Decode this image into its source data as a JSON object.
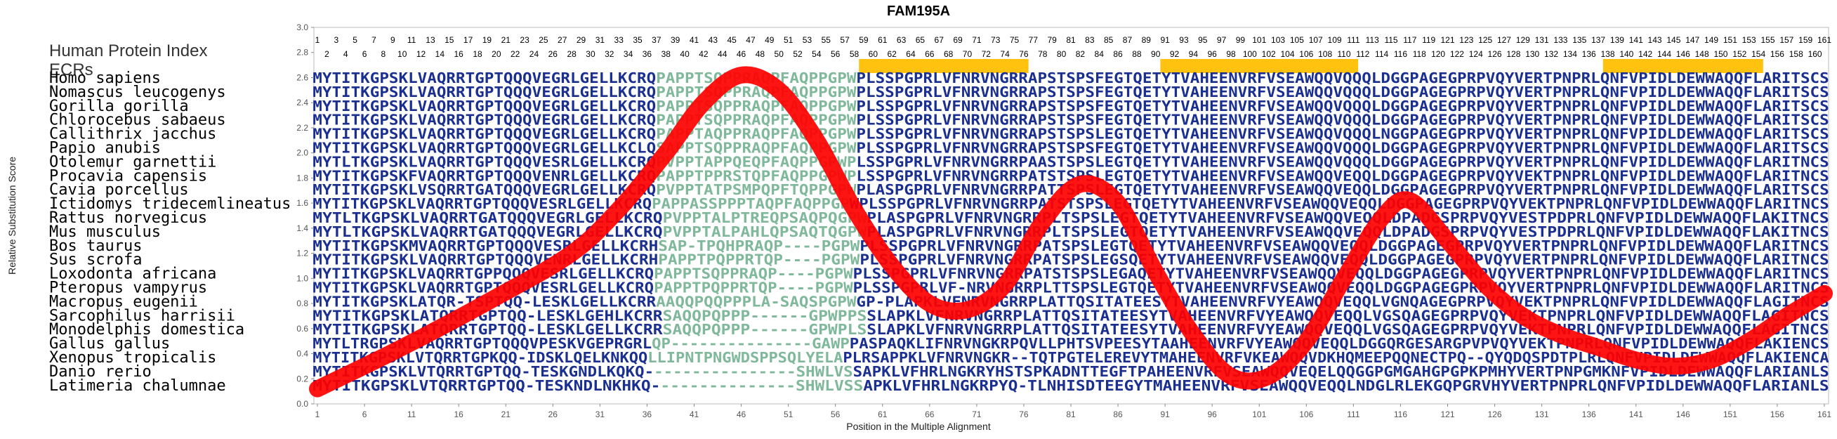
{
  "chart_data": {
    "type": "line",
    "title": "FAM195A",
    "xlabel": "Position in the Multiple Alignment",
    "ylabel": "Relative Substitution Score",
    "xlim": [
      1,
      161
    ],
    "ylim": [
      0.0,
      3.0
    ],
    "y_ticks": [
      "0.0",
      "0.2",
      "0.4",
      "0.6",
      "0.8",
      "1.0",
      "1.2",
      "1.4",
      "1.6",
      "1.8",
      "2.0",
      "2.2",
      "2.4",
      "2.6",
      "2.8",
      "3.0"
    ],
    "x_ticks": [
      "1",
      "6",
      "11",
      "16",
      "21",
      "26",
      "31",
      "36",
      "41",
      "46",
      "51",
      "56",
      "61",
      "66",
      "71",
      "76",
      "81",
      "86",
      "91",
      "96",
      "101",
      "106",
      "111",
      "116",
      "121",
      "126",
      "131",
      "136",
      "141",
      "146",
      "151",
      "156",
      "161"
    ],
    "curve_color": "#ff0000",
    "ecr_color": "#ffc20e",
    "series": [
      {
        "x": [
          1,
          10,
          20,
          28,
          33,
          38,
          42,
          46,
          50,
          54,
          58,
          62,
          66,
          70,
          74,
          78,
          82,
          86,
          90,
          94,
          98,
          102,
          106,
          110,
          114,
          117,
          121,
          125,
          129,
          133,
          137,
          141,
          145,
          149,
          153,
          157,
          161
        ],
        "values": [
          0.12,
          0.45,
          0.85,
          1.2,
          1.55,
          2.0,
          2.4,
          2.62,
          2.5,
          2.1,
          1.55,
          1.1,
          0.8,
          0.75,
          0.95,
          1.45,
          1.75,
          1.6,
          1.05,
          0.55,
          0.22,
          0.22,
          0.5,
          1.0,
          1.48,
          1.62,
          1.3,
          0.95,
          0.7,
          0.55,
          0.45,
          0.35,
          0.3,
          0.35,
          0.5,
          0.7,
          0.88
        ]
      }
    ],
    "ecr_regions": [
      [
        59,
        76
      ],
      [
        91,
        111
      ],
      [
        138,
        154
      ]
    ]
  },
  "labels": {
    "index_title": "Human Protein Index",
    "ecr_label": "ECRs"
  },
  "species": [
    {
      "name": "Homo sapiens",
      "seq": "MYTITKGPSKLVAQRRTGPTQQQVEGRLGELLKCRQPAPPTSQPPRAQPFAQPPGPWPLSSPGPRLVFNRVNGRRAPSTSPSFEGTQETYTVAHEENVRFVSEAWQQVQQQLDGGPAGEGPRPVQYVERTPNPRLQNFVPIDLDEWWAQQFLARITSCS"
    },
    {
      "name": "Nomascus leucogenys",
      "seq": "MYTITKGPSKLVAQRRTGPTQQQVEGRLGELLKCRQPAPPTSQPPRAQPFAQPPGPWPLSSPGPRLVFNRVNGRRAPSTSPSFEGTQETYTVAHEENVRFVSEAWQQVQQQLDGGPAGEGPRPVQYVERTPNPRLQNFVPIDLDEWWAQQFLARITSCS"
    },
    {
      "name": "Gorilla gorilla",
      "seq": "MYTITKGPSKLVAQRRTGPTQQQVEGRLGELLKCRQPAPPTSQPPRAQPFAQPPGPWPLSSPGPRLVFNRVNGRRAPSTSPSFEGTQETYTVAHEENVRFVSEAWQQVQQQLDGGPAGEGPRPVQYVERTPNPRLQNFVPIDLDEWWAQQFLARITSCS"
    },
    {
      "name": "Chlorocebus sabaeus",
      "seq": "MYTITKGPSKLVAQRRTGPTQQQVEGRLGELLKCRQPAPPTSQPPRAQPFAQPPGPWPLSSPGPRLVFNRVNGRRAPSTSPSFEGTQETYTVAHEENVRFVSEAWQQVQQQLDGGPAGEGPRPVQYVERTPNPRLQNFVPIDLDEWWAQQFLARITSCS"
    },
    {
      "name": "Callithrix jacchus",
      "seq": "MYTITKGPSKLVAQRRTGPTQQQVEGRLGELLKCRQPAPPTAQPPRAQPFAQPPGPWPLSSPGPRLVFNRVNGRRAPSTSPSLEGTQETYTVAHEENVRFVSEAWQQVQQQLNGGPAGEGPRPVQYVERTPNPRLQNFVPIDLDEWWAQQFLARITSCS"
    },
    {
      "name": "Papio anubis",
      "seq": "MYTITKGPSKLVAQRRTGPTQQQVEGRLGELLKCLQSAPPTSQPPRAQPFAQPPGPWPLSSPGPRLVFNRVNGRRAPSTSPSFEGTQETYTVAHEENVRFVSEAWQQVQQQLDGGPAGEGPRPVQYVERTPNPRLQNFVPIDLDEWWAQQFLARITSCS"
    },
    {
      "name": "Otolemur garnettii",
      "seq": "MYTLTKGPSKLVAQRRTGPTQQQVESRLGELLKCRQPVPPTAPPQEQPFAQPPGPWPLSSPGPRLVFNRVNGRRPAASTSPSLEGTQETYTVAHEENVRFVSEAWQQVQQQLDGGPAGEGPRPVQYVERTPNPRLQNFVPIDLDEWWAQQFLARITNCS"
    },
    {
      "name": "Procavia capensis",
      "seq": "MYTITKGPSKFVAQRRTGPTQQQVENRLGELLKCRQPAPPTPPRSTQPFAQPPGPWPLSSPGPRLVFNRVNGRRPATSTSPSLEGTQETYTVAHEENVRFVSEAWQQVEQQLDGGPAGEGPRPVQYVEKTPNPRLQNFVPIDLDEWWAQQFLARITNCS"
    },
    {
      "name": "Cavia porcellus",
      "seq": "MYTITKGPSKLVSQRRTGATQQQVEGRLGELLKCRQPVPPTATPSMPQPFTQPPGPWPLASPGPRLVFNRVNGRRPATTSPSLEGTQETYTVAHEENVRFVSEAWQQVEQQLDGGPAGEGPRPVQYVERTPNPRLQNFVPIDLDEWWAQQFLARITSCS"
    },
    {
      "name": "Ictidomys tridecemlineatus",
      "seq": "MYTITKGPSKLVAQRRTGPTQQQVESRLGELLKCRQPAPPASSPPPTAQPFAQPPGPWPLSSPGPRLVFNRVNGRRPATSTSPSLEGTQETYTVAHEENVRFVSEAWQQVEQQLDGGPAGEGPRPVQYVEKTPNPRLQNFVPIDLDEWWAQQFLARITNCS"
    },
    {
      "name": "Rattus norvegicus",
      "seq": "MYTLTKGPSKLVAQRRTGATQQQVEGRLGELLKCRQPVPPTALPTREQPSAQPQGPWPLASPGPRLVFNRVNGRRPLTSPSLEGTQETYTVAHEENVRFVSEAWQQVEQQLDPADGSPRPVQYVESTPDPRLQNFVPIDLDEWWAQQFLAKITNCS"
    },
    {
      "name": "Mus musculus",
      "seq": "MYTLTKGPSKLVAQRRTGATQQQVEGRLGELLKCRQPVPPTALPAHLQPSAQTQGPWPLASPGPRLVFNRVNGRRPLTSPSLEGTQETYTVAHEENVRFVSEAWQQVEQQLDPADGSPRPVQYVESTPDPRLQNFVPIDLDEWWAQQFLAKITNCS"
    },
    {
      "name": "Bos taurus",
      "seq": "MYTITKGPSKMVAQRRTGPTQQQVESRLGELLKCRHSAP-TPQHPRAQP----PGPWPLSSPGPRLVFNRVNGRRPATSPSLEGTQETYTVAHEENVRFVSEAWQQVEQQLDGGPAGEGPRPVQYVERTPNPRLQNFVPIDLDEWWAQQFLARITNCS"
    },
    {
      "name": "Sus scrofa",
      "seq": "MYTITKGPSKLVAQRRTGPTQQQVENRLGELLKCRHPAPPTPQPPRTQP----PGPWPLSSPGPRLVFNRVNGRRPATSPSLEGSQETYTVAHEENVRFVSEAWQQVEQQLDGGPAGEGPRPVQYVERTPNPRLQNFVPIDLDEWWAQQFLARITNCS"
    },
    {
      "name": "Loxodonta africana",
      "seq": "MYTITKGPSKLVAQRRTGPPQQQVESRLGELLKCRQPAPPTSQPPRAQP----PGPWPLSSPGPRLVFNRVNGRRPATSTSPSLEGAQETYTVAHEENVRFVSEAWQQVEQQLDGGPAGEGPRPVQYVERTPNPRLQNFVPIDLDEWWAQQFLARITNCS"
    },
    {
      "name": "Pteropus vampyrus",
      "seq": "MYTITKGPSKLVAQRRTGPTQQQVESRLGELLKCRQPAPPTPQPPRTQP----PGPWPLSSPGPRLVF-NRVNGRRPLTTSPSLEGTQETYTVAHEENVRFVSEAWQQVEQQLDGGPAGEGPRPVQYVERTPNPRLQNFVPIDLDEWWAQQFLARITNCS"
    },
    {
      "name": "Macropus eugenii",
      "seq": "MYTITKGPSKLATQR-TSPTQQ-LESKLGELLKCRRAAQQPQQPPPLA-SAQSPGPWGP-PLAPKLVFNRVNGRRPLATTQSITATEESYTVAHEENVRFVYEAWQQVEQQLVGNQAGEGPRPVQYVEKTPNPRLQNFVPIDLDEWWAQQFLAGITNCS"
    },
    {
      "name": "Sarcophilus harrisii",
      "seq": "MYTITKGPSKLATQRRTGPTQQ-LESKLGEHLKCRRSAQQPQPPP------GPWPPSSLAPKLVFNRVNGRRPLATTQSITATEESYTVAHEENVRFVYEAWQQVEQQLVGSQAGEGPRPVQYVEKTPNPRLQNFVPIDLDEWWAQQFLAGITNCS"
    },
    {
      "name": "Monodelphis domestica",
      "seq": "MYTITKGPSKLATQRRTGPTQQ-LESKLGELLKCRRSAQQPQPPP------GPWPLSSLAPKLVFNRVNGRRPLATTQSITATEESYTVAHEENVRFVYEAWQQVEQQLVGSQAGEGPRPVQYVEKTPNPRLQNFVPIDLDEWWAQQFLAGITNCS"
    },
    {
      "name": "Gallus gallus",
      "seq": "MYTLTRGPSKLVAQRRTGPTQQQVPESKVGEPRGRLQP---------------GAWPPASPAQKLIFNRVNGKRPQVLLPHTSVPEESYTAAHEENVRFVYEAWQQVEQQLDGGQRGESARGPVPVQYVEKTPNPRLQNFVPIDLDEWWAQQFLAKIENCS"
    },
    {
      "name": "Xenopus tropicalis",
      "seq": "MYTITKGPSKLVTQRRTGPKQQ-IDSKLQELKNKQQLLIPNTPNGWDSPPSQLYELAPLRSAPPKLVFNRVNGKR--TQTPGTELEREVYTMAHEENVRFVKEAWQQVDKHQMEEPQQNECTPQ--QYQDQSPDTPLRLQNFVPIDLDEWWAQQFLAKIENCA"
    },
    {
      "name": "Danio rerio",
      "seq": "MYTITKGPSKLVTQRRTGPTQQ-TESKGNDLKQKQ----------------SHWLVSSAPKLVFHRLNGKRYHSTSPKADNTTEGFTPAHEENVRFVSEAWQQVEQELQQGGPGMGAHGPGPKPMHYVERTPNPGMKNFVPIDLDEWWAQQFLARIANLS"
    },
    {
      "name": "Latimeria chalumnae",
      "seq": "MYTITKGPSKLVTQRRTGPTQQ-TESKNDLNKHKQ---------------SHWLVSSAPKLVFHRLNGKRPYQ-TLNHISDTEEGYTMAHEENVRFVSEAWQQVEQQLNDGLRLEKGQPGRVHYVERTPNPRLQNFVPIDLDEWWAQQFLARIANLS"
    }
  ]
}
